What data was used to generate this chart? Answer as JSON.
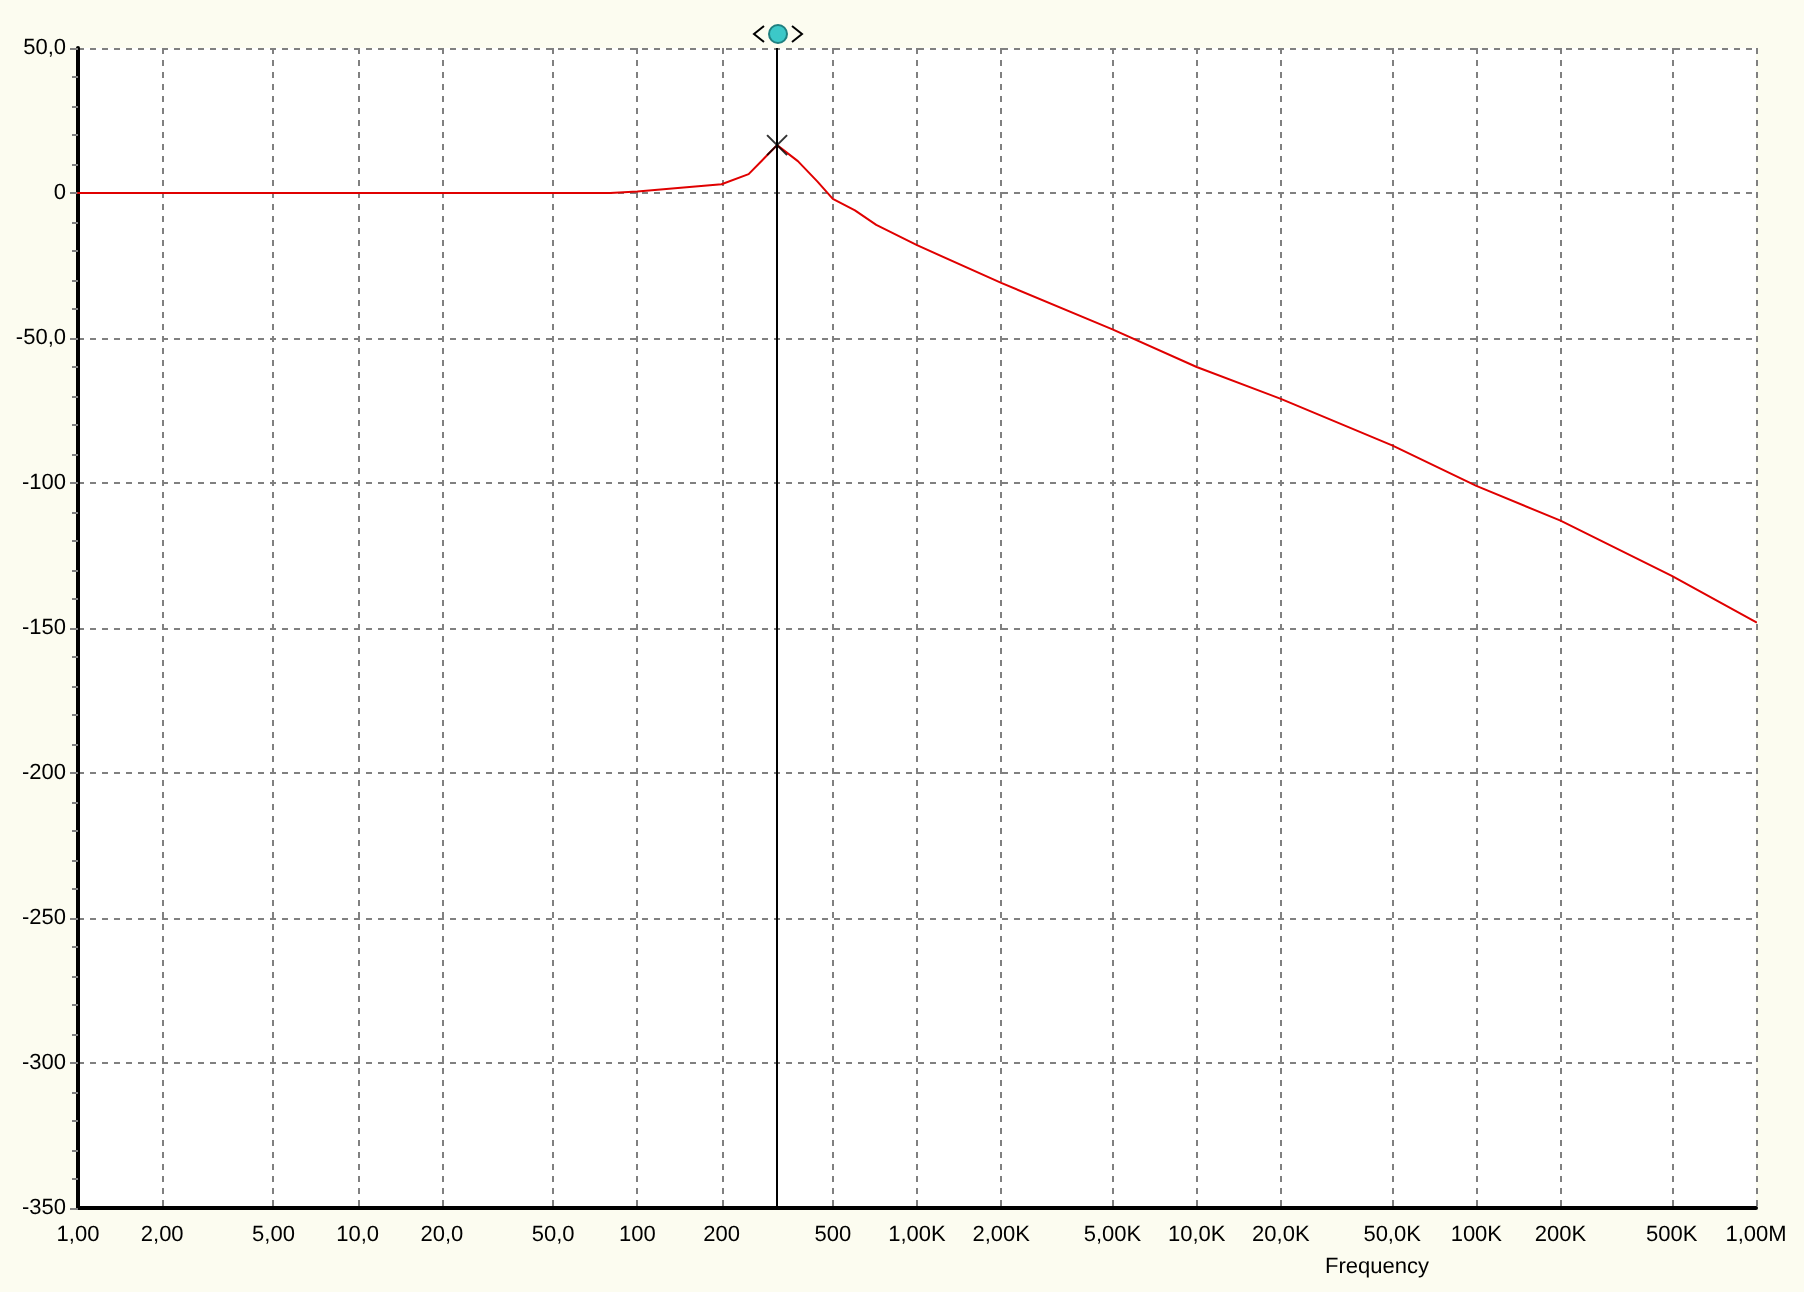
{
  "chart_data": {
    "type": "line",
    "xlabel": "Frequency",
    "log": "x",
    "grid": true,
    "x": [
      1,
      10,
      50,
      80,
      100,
      150,
      200,
      250,
      316,
      375,
      440,
      500,
      600,
      715,
      1000,
      2000,
      5000,
      10000,
      20000,
      50000,
      100000,
      200000,
      500000,
      1000000
    ],
    "xlim": [
      1,
      1000000
    ],
    "xticks": [
      {
        "value": 1,
        "label": "1,00"
      },
      {
        "value": 2,
        "label": "2,00"
      },
      {
        "value": 5,
        "label": "5,00"
      },
      {
        "value": 10,
        "label": "10,0"
      },
      {
        "value": 20,
        "label": "20,0"
      },
      {
        "value": 50,
        "label": "50,0"
      },
      100,
      200,
      500,
      {
        "value": 1000,
        "label": "1,00K"
      },
      {
        "value": 2000,
        "label": "2,00K"
      },
      {
        "value": 5000,
        "label": "5,00K"
      },
      {
        "value": 10000,
        "label": "10,0K"
      },
      {
        "value": 20000,
        "label": "20,0K"
      },
      {
        "value": 50000,
        "label": "50,0K"
      },
      {
        "value": 100000,
        "label": "100K"
      },
      {
        "value": 200000,
        "label": "200K"
      },
      {
        "value": 500000,
        "label": "500K"
      },
      {
        "value": 1000000,
        "label": "1,00M"
      }
    ],
    "ylim": [
      -350,
      50
    ],
    "yticks": [
      -350,
      -300,
      -250,
      -200,
      -150,
      -100,
      {
        "value": -50,
        "label": "-50,0"
      },
      0,
      {
        "value": 50,
        "label": "50,0"
      }
    ],
    "series": [
      {
        "color": "#e00000",
        "values": [
          0,
          0,
          0,
          0,
          0.5,
          2,
          3,
          6.5,
          16.5,
          11,
          4,
          -2,
          -6,
          -11,
          -18,
          -31,
          -47,
          -60,
          -71,
          -87,
          -101,
          -113,
          -132,
          -148
        ]
      },
      {
        "type": "scatter",
        "x": [
          316
        ],
        "values": [
          16.5
        ],
        "color": "#000000",
        "marker": "cross"
      }
    ],
    "ref_lines": [
      {
        "axis": "x",
        "value": 316,
        "color": "#000000"
      }
    ]
  }
}
